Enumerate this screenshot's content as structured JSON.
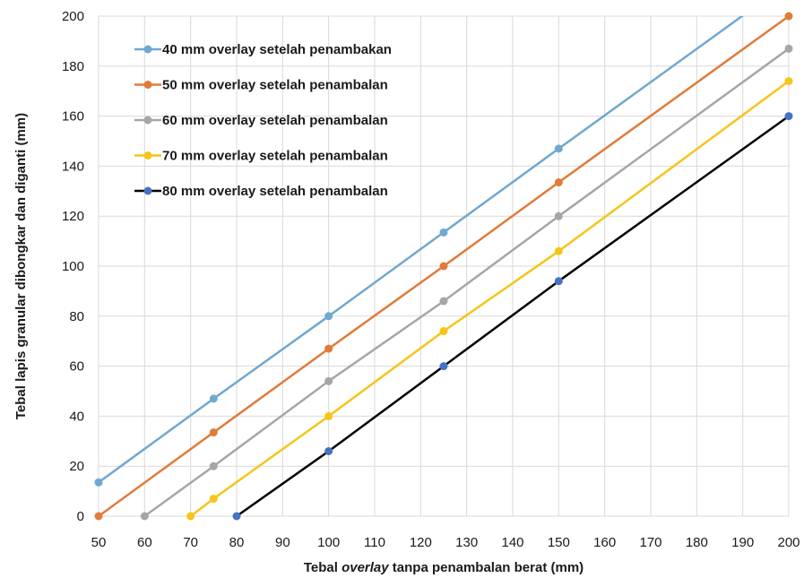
{
  "chart_data": {
    "type": "line",
    "xlabel_parts": [
      "Tebal ",
      "overlay",
      " tanpa penambalan berat (mm)"
    ],
    "ylabel": "Tebal lapis granular dibongkar dan diganti  (mm)",
    "xlim": [
      50,
      200
    ],
    "ylim": [
      0,
      200
    ],
    "xticks": [
      50,
      60,
      70,
      80,
      90,
      100,
      110,
      120,
      130,
      140,
      150,
      160,
      170,
      180,
      190,
      200
    ],
    "yticks": [
      0,
      20,
      40,
      60,
      80,
      100,
      120,
      140,
      160,
      180,
      200
    ],
    "grid": true,
    "legend_position": "top-left",
    "series": [
      {
        "name": "40 mm overlay setelah penambakan",
        "color": "#6fa8d0",
        "marker_color": "#6fa8d0",
        "x": [
          50,
          75,
          100,
          125,
          150,
          200
        ],
        "y": [
          13.5,
          47,
          80,
          113.5,
          147,
          213.5
        ]
      },
      {
        "name": "50 mm overlay setelah penambalan",
        "color": "#e07b39",
        "marker_color": "#e07b39",
        "x": [
          50,
          75,
          100,
          125,
          150,
          200
        ],
        "y": [
          0,
          33.5,
          67,
          100,
          133.5,
          200
        ]
      },
      {
        "name": "60 mm overlay setelah penambalan",
        "color": "#a6a6a6",
        "marker_color": "#a6a6a6",
        "x": [
          60,
          75,
          100,
          125,
          150,
          200
        ],
        "y": [
          0,
          20,
          54,
          86,
          120,
          187
        ]
      },
      {
        "name": "70 mm overlay setelah penambalan",
        "color": "#f5c518",
        "marker_color": "#f5c518",
        "x": [
          70,
          75,
          100,
          125,
          150,
          200
        ],
        "y": [
          0,
          7,
          40,
          74,
          106,
          174
        ]
      },
      {
        "name": "80 mm overlay setelah penambalan",
        "color": "#000000",
        "marker_color": "#4472c4",
        "x": [
          80,
          100,
          125,
          150,
          200
        ],
        "y": [
          0,
          26,
          60,
          94,
          160
        ]
      }
    ]
  }
}
